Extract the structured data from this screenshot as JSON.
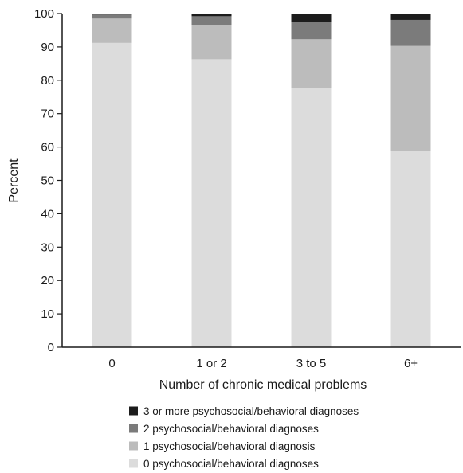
{
  "chart_data": {
    "type": "bar",
    "stacked": true,
    "xlabel": "Number of chronic medical problems",
    "ylabel": "Percent",
    "ylim": [
      0,
      100
    ],
    "yticks": [
      0,
      10,
      20,
      30,
      40,
      50,
      60,
      70,
      80,
      90,
      100
    ],
    "categories": [
      "0",
      "1 or 2",
      "3 to 5",
      "6+"
    ],
    "series": [
      {
        "name": "0 psychosocial/behavioral diagnoses",
        "color": "#dcdcdc",
        "values": [
          91.2,
          86.3,
          77.6,
          58.7
        ]
      },
      {
        "name": "1 psychosocial/behavioral diagnosis",
        "color": "#bcbcbc",
        "values": [
          7.3,
          10.3,
          14.7,
          31.6
        ]
      },
      {
        "name": "2 psychosocial/behavioral diagnoses",
        "color": "#7b7b7b",
        "values": [
          1.2,
          2.6,
          5.3,
          7.8
        ]
      },
      {
        "name": "3 or more psychosocial/behavioral diagnoses",
        "color": "#1c1c1c",
        "values": [
          0.3,
          0.8,
          2.4,
          1.9
        ]
      }
    ],
    "legend": {
      "placement": "bottom",
      "order": [
        "3 or more psychosocial/behavioral diagnoses",
        "2 psychosocial/behavioral diagnoses",
        "1 psychosocial/behavioral diagnosis",
        "0 psychosocial/behavioral diagnoses"
      ]
    },
    "grid": false
  }
}
